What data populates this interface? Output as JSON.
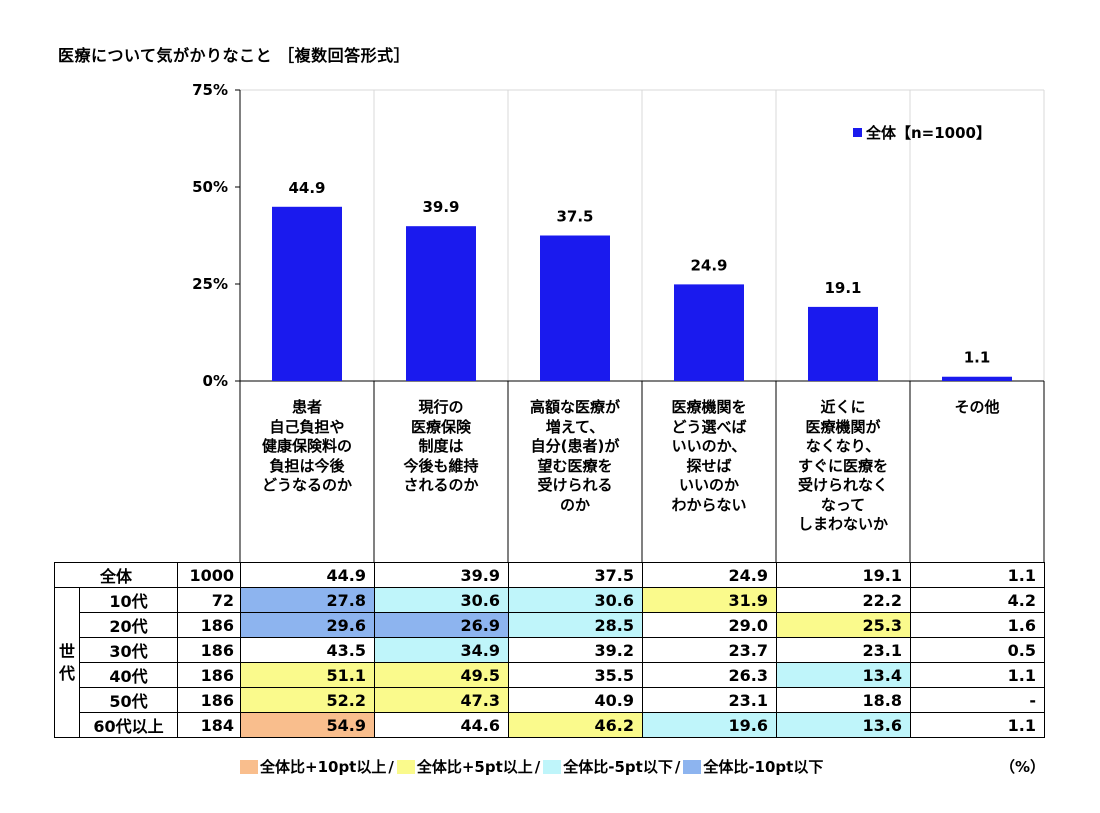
{
  "title": "医療について気がかりなこと ［複数回答形式］",
  "colors": {
    "bar": "#1a1aee",
    "plus10": "#f9be8d",
    "plus5": "#fafa8c",
    "minus5": "#bff5fa",
    "minus10": "#8db4ef"
  },
  "chart_data": {
    "type": "bar",
    "categories": [
      "患者\n自己負担や\n健康保険料の\n負担は今後\nどうなるのか",
      "現行の\n医療保険\n制度は\n今後も維持\nされるのか",
      "高額な医療が\n増えて、\n自分(患者)が\n望む医療を\n受けられる\nのか",
      "医療機関を\nどう選べば\nいいのか、\n探せば\nいいのか\nわからない",
      "近くに\n医療機関が\nなくなり、\nすぐに医療を\n受けられなく\nなって\nしまわないか",
      "その他"
    ],
    "series": [
      {
        "name": "全体【n=1000】",
        "values": [
          44.9,
          39.9,
          37.5,
          24.9,
          19.1,
          1.1
        ]
      }
    ],
    "data_labels": [
      "44.9",
      "39.9",
      "37.5",
      "24.9",
      "19.1",
      "1.1"
    ],
    "yticks": [
      "0%",
      "25%",
      "50%",
      "75%"
    ],
    "ylim": [
      0,
      75
    ],
    "grid": true,
    "legend_position": "top-right"
  },
  "table": {
    "group_label": "世代",
    "rows": [
      {
        "label": "全体",
        "n": "1000",
        "values": [
          "44.9",
          "39.9",
          "37.5",
          "24.9",
          "19.1",
          "1.1"
        ],
        "hl": [
          "",
          "",
          "",
          "",
          "",
          ""
        ]
      },
      {
        "label": "10代",
        "n": "72",
        "values": [
          "27.8",
          "30.6",
          "30.6",
          "31.9",
          "22.2",
          "4.2"
        ],
        "hl": [
          "minus10",
          "minus5",
          "minus5",
          "plus5",
          "",
          ""
        ]
      },
      {
        "label": "20代",
        "n": "186",
        "values": [
          "29.6",
          "26.9",
          "28.5",
          "29.0",
          "25.3",
          "1.6"
        ],
        "hl": [
          "minus10",
          "minus10",
          "minus5",
          "",
          "plus5",
          ""
        ]
      },
      {
        "label": "30代",
        "n": "186",
        "values": [
          "43.5",
          "34.9",
          "39.2",
          "23.7",
          "23.1",
          "0.5"
        ],
        "hl": [
          "",
          "minus5",
          "",
          "",
          "",
          ""
        ]
      },
      {
        "label": "40代",
        "n": "186",
        "values": [
          "51.1",
          "49.5",
          "35.5",
          "26.3",
          "13.4",
          "1.1"
        ],
        "hl": [
          "plus5",
          "plus5",
          "",
          "",
          "minus5",
          ""
        ]
      },
      {
        "label": "50代",
        "n": "186",
        "values": [
          "52.2",
          "47.3",
          "40.9",
          "23.1",
          "18.8",
          "-"
        ],
        "hl": [
          "plus5",
          "plus5",
          "",
          "",
          "",
          ""
        ]
      },
      {
        "label": "60代以上",
        "n": "184",
        "values": [
          "54.9",
          "44.6",
          "46.2",
          "19.6",
          "13.6",
          "1.1"
        ],
        "hl": [
          "plus10",
          "",
          "plus5",
          "minus5",
          "minus5",
          ""
        ]
      }
    ]
  },
  "bottom_legend": [
    {
      "key": "plus10",
      "label": "全体比+10pt以上"
    },
    {
      "key": "plus5",
      "label": "全体比+5pt以上"
    },
    {
      "key": "minus5",
      "label": "全体比-5pt以下"
    },
    {
      "key": "minus10",
      "label": "全体比-10pt以下"
    }
  ],
  "unit": "（%）"
}
